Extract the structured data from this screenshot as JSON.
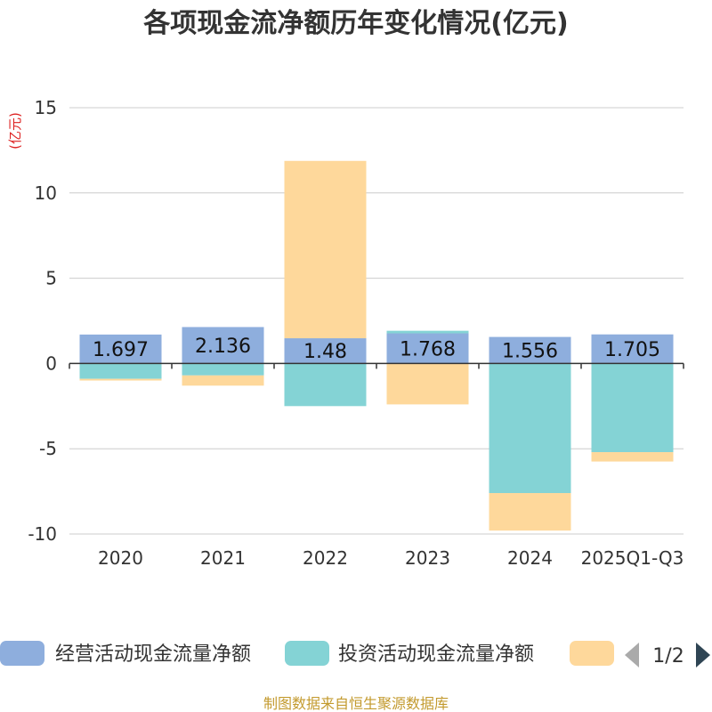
{
  "title": "各项现金流净额历年变化情况(亿元)",
  "unit_label": "(亿元)",
  "source": "制图数据来自恒生聚源数据库",
  "colors": {
    "operating": "#8eaedd",
    "investing": "#84d3d5",
    "financing": "#fed89b",
    "unit": "#dd2222",
    "source": "#c39a2e",
    "grid": "#cccccc",
    "axis": "#333333",
    "pager_active": "#2f4554",
    "pager_inactive": "#aaaaaa"
  },
  "pager": {
    "text": "1/2",
    "prev_icon": "triangle-left-icon",
    "next_icon": "triangle-right-icon"
  },
  "chart_data": {
    "type": "bar",
    "stacked": true,
    "title": "各项现金流净额历年变化情况(亿元)",
    "ylabel": "(亿元)",
    "xlabel": "",
    "ylim": [
      -10,
      15
    ],
    "yticks": [
      -10,
      -5,
      0,
      5,
      10,
      15
    ],
    "grid": true,
    "legend_position": "bottom",
    "categories": [
      "2020",
      "2021",
      "2022",
      "2023",
      "2024",
      "2025Q1-Q3"
    ],
    "series": [
      {
        "name": "经营活动现金流量净额",
        "color_key": "operating",
        "values": [
          1.697,
          2.136,
          1.48,
          1.768,
          1.556,
          1.705
        ],
        "labels": [
          "1.697",
          "2.136",
          "1.48",
          "1.768",
          "1.556",
          "1.705"
        ]
      },
      {
        "name": "投资活动现金流量净额",
        "color_key": "investing",
        "values": [
          -0.9,
          -0.7,
          -2.5,
          0.15,
          -7.6,
          -5.2
        ]
      },
      {
        "name": "",
        "color_key": "financing",
        "values": [
          -0.1,
          -0.6,
          10.4,
          -2.4,
          -2.2,
          -0.55
        ]
      }
    ]
  }
}
